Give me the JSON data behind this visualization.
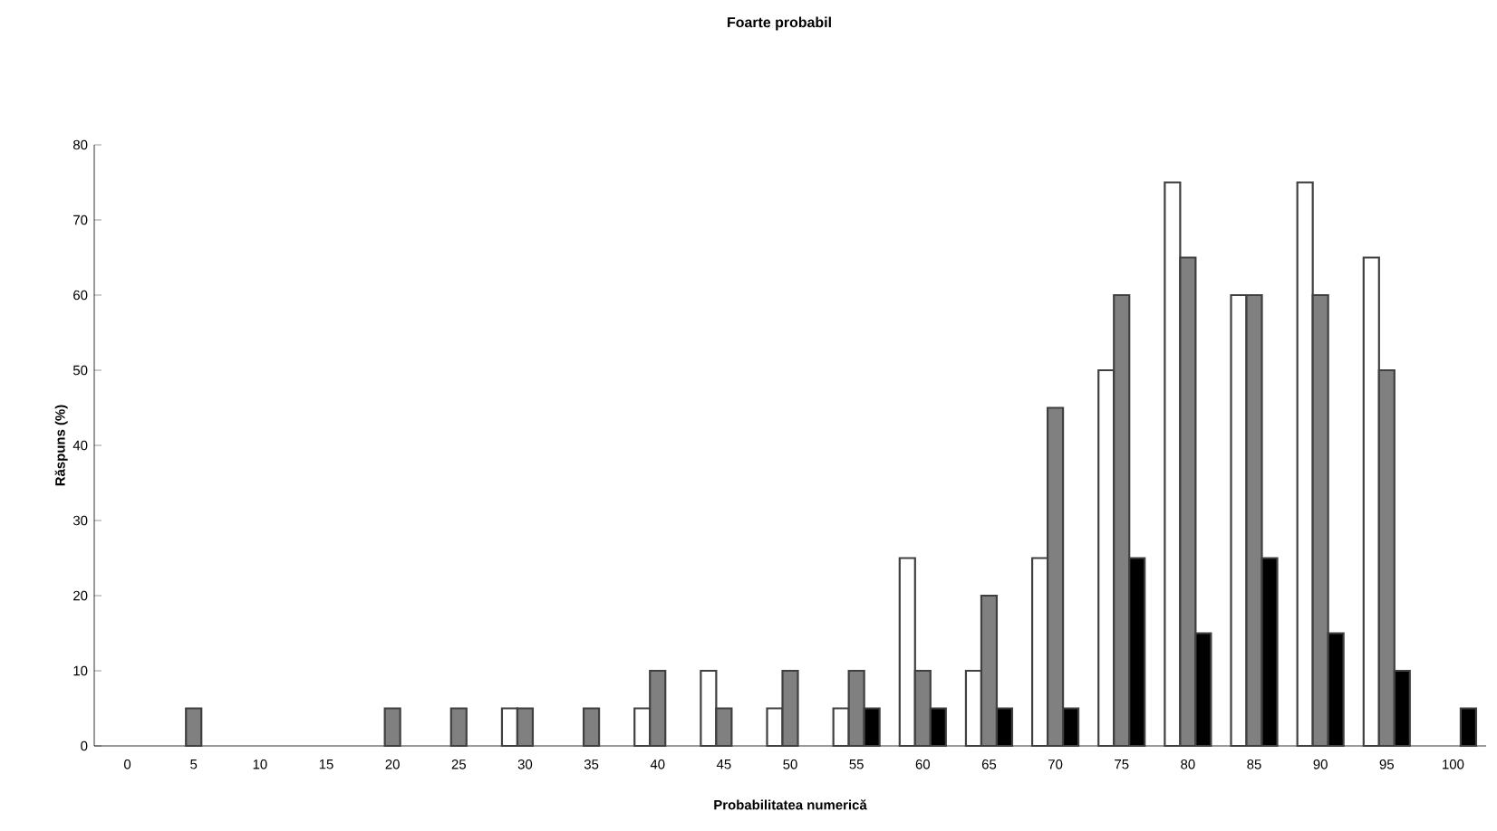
{
  "chart_data": {
    "type": "bar",
    "title": "Foarte probabil",
    "xlabel": "Probabilitatea numerică",
    "ylabel": "Răspuns (%)",
    "categories": [
      "0",
      "5",
      "10",
      "15",
      "20",
      "25",
      "30",
      "35",
      "40",
      "45",
      "50",
      "55",
      "60",
      "65",
      "70",
      "75",
      "80",
      "85",
      "90",
      "95",
      "100"
    ],
    "series": [
      {
        "color": "#ffffff",
        "values": [
          0,
          0,
          0,
          0,
          0,
          0,
          5,
          0,
          5,
          10,
          5,
          5,
          25,
          10,
          25,
          50,
          75,
          60,
          75,
          65,
          0
        ]
      },
      {
        "color": "#808080",
        "values": [
          0,
          5,
          0,
          0,
          5,
          5,
          5,
          5,
          10,
          5,
          10,
          10,
          10,
          20,
          45,
          60,
          65,
          60,
          60,
          50,
          0
        ]
      },
      {
        "color": "#000000",
        "values": [
          0,
          0,
          0,
          0,
          0,
          0,
          0,
          0,
          0,
          0,
          0,
          5,
          5,
          5,
          5,
          25,
          15,
          25,
          15,
          10,
          5
        ]
      }
    ],
    "ylim": [
      0,
      80
    ],
    "yticks": [
      0,
      10,
      20,
      30,
      40,
      50,
      60,
      70,
      80
    ],
    "grid": false
  }
}
